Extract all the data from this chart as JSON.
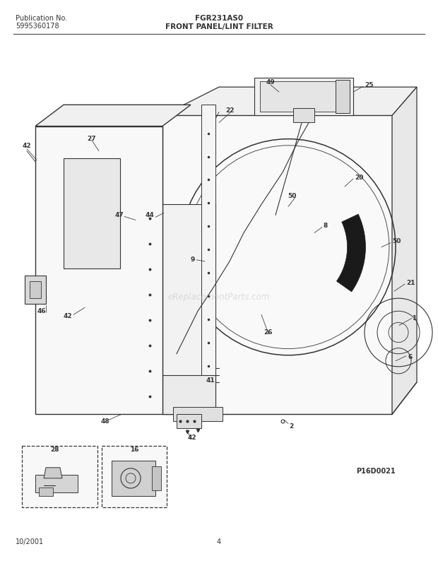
{
  "pub_no_label": "Publication No.",
  "pub_no": "5995360178",
  "model": "FGR231AS0",
  "diagram_title": "FRONT PANEL/LINT FILTER",
  "date": "10/2001",
  "page": "4",
  "diagram_id": "P16D0021",
  "watermark": "eReplacementParts.com",
  "bg_color": "#ffffff",
  "lc": "#333333",
  "tc": "#333333"
}
